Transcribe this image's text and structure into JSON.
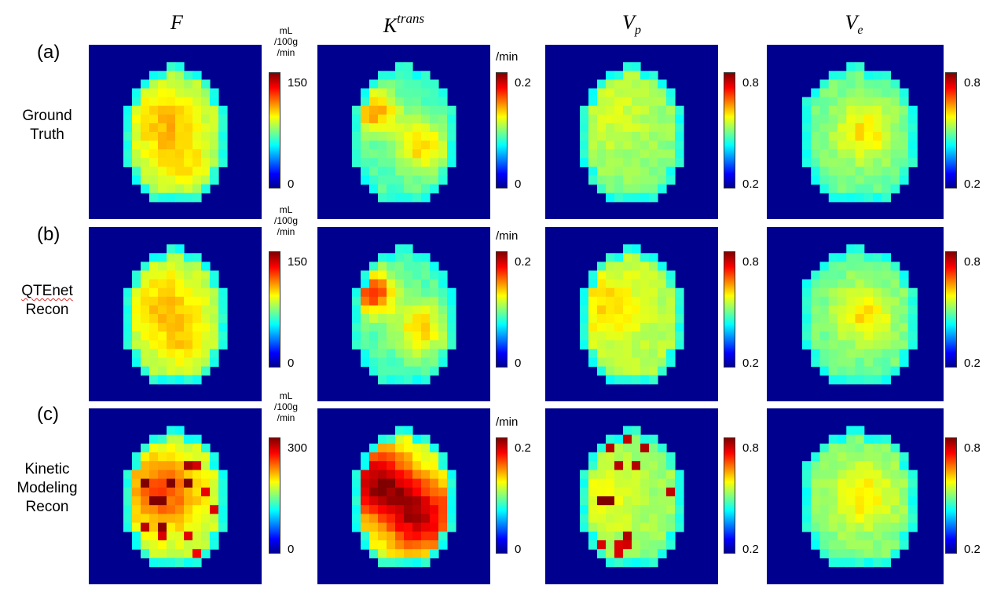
{
  "columns": [
    {
      "key": "F",
      "base": "F",
      "sup": "",
      "sub": ""
    },
    {
      "key": "Ktrans",
      "base": "K",
      "sup": "trans",
      "sub": ""
    },
    {
      "key": "Vp",
      "base": "V",
      "sup": "",
      "sub": "p"
    },
    {
      "key": "Ve",
      "base": "V",
      "sup": "",
      "sub": "e"
    }
  ],
  "rows": [
    {
      "letter": "(a)",
      "label_lines": [
        "Ground",
        "Truth"
      ]
    },
    {
      "letter": "(b)",
      "label_lines": [
        "QTEnet",
        "Recon"
      ]
    },
    {
      "letter": "(c)",
      "label_lines": [
        "Kinetic",
        "Modeling",
        "Recon"
      ]
    }
  ],
  "colorbars": [
    [
      {
        "unit_lines": [
          "mL",
          "/100g",
          "/min"
        ],
        "max": "150",
        "min": "0"
      },
      {
        "unit_lines": [
          "/min"
        ],
        "max": "0.2",
        "min": "0"
      },
      {
        "unit_lines": [],
        "max": "0.8",
        "min": "0.2"
      },
      {
        "unit_lines": [],
        "max": "0.8",
        "min": "0.2"
      }
    ],
    [
      {
        "unit_lines": [
          "mL",
          "/100g",
          "/min"
        ],
        "max": "150",
        "min": "0"
      },
      {
        "unit_lines": [
          "/min"
        ],
        "max": "0.2",
        "min": "0"
      },
      {
        "unit_lines": [],
        "max": "0.8",
        "min": "0.2"
      },
      {
        "unit_lines": [],
        "max": "0.8",
        "min": "0.2"
      }
    ],
    [
      {
        "unit_lines": [
          "mL",
          "/100g",
          "/min"
        ],
        "max": "300",
        "min": "0"
      },
      {
        "unit_lines": [
          "/min"
        ],
        "max": "0.2",
        "min": "0"
      },
      {
        "unit_lines": [],
        "max": "0.8",
        "min": "0.2"
      },
      {
        "unit_lines": [],
        "max": "0.8",
        "min": "0.2"
      }
    ]
  ],
  "colormap": "jet",
  "background_color": "#00008f"
}
